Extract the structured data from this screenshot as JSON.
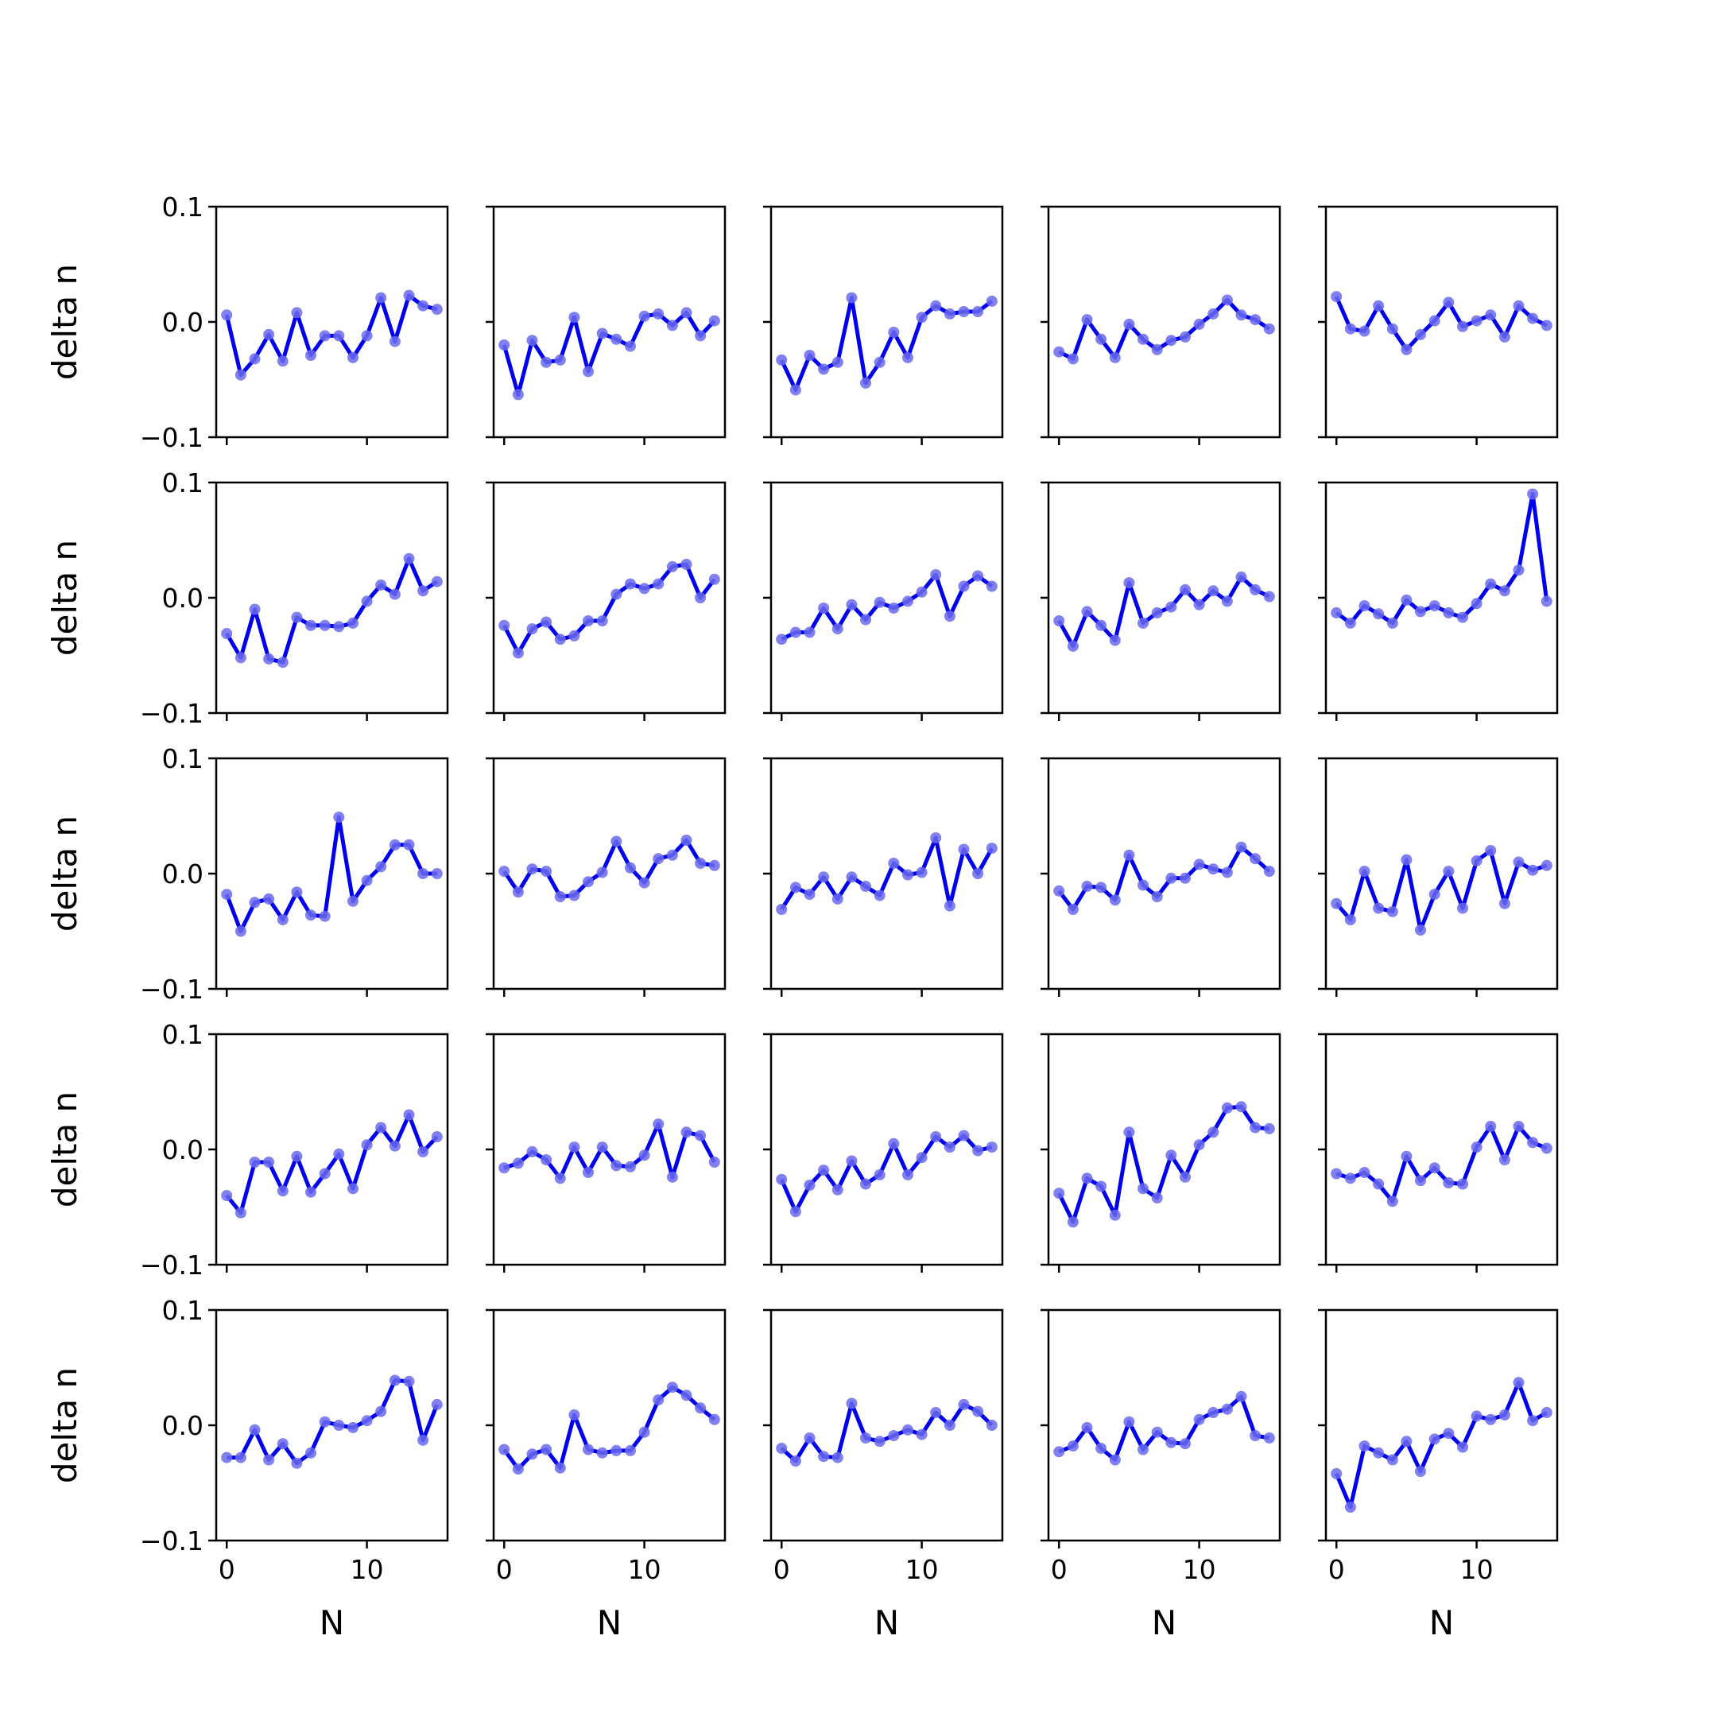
{
  "chart_data": {
    "type": "line",
    "layout": {
      "rows": 5,
      "cols": 5
    },
    "xlabel": "N",
    "ylabel": "delta n",
    "xlim": [
      -0.75,
      15.75
    ],
    "ylim": [
      -0.1,
      0.1
    ],
    "xticks": [
      0,
      10
    ],
    "yticks": [
      -0.1,
      0.0,
      0.1
    ],
    "ytick_labels": [
      "−0.1",
      "0.0",
      "0.1"
    ],
    "xtick_labels": [
      "0",
      "10"
    ],
    "x": [
      0,
      1,
      2,
      3,
      4,
      5,
      6,
      7,
      8,
      9,
      10,
      11,
      12,
      13,
      14,
      15
    ],
    "line_color": "#0000ee",
    "marker_color": "#6a6aee",
    "panels": [
      [
        0.006,
        -0.046,
        -0.032,
        -0.011,
        -0.034,
        0.008,
        -0.029,
        -0.012,
        -0.012,
        -0.031,
        -0.012,
        0.021,
        -0.017,
        0.023,
        0.014,
        0.011
      ],
      [
        -0.02,
        -0.063,
        -0.016,
        -0.035,
        -0.033,
        0.004,
        -0.043,
        -0.01,
        -0.015,
        -0.021,
        0.005,
        0.007,
        -0.003,
        0.008,
        -0.012,
        0.001
      ],
      [
        -0.033,
        -0.059,
        -0.029,
        -0.041,
        -0.035,
        0.021,
        -0.053,
        -0.035,
        -0.009,
        -0.031,
        0.004,
        0.014,
        0.007,
        0.009,
        0.009,
        0.018
      ],
      [
        -0.026,
        -0.032,
        0.002,
        -0.015,
        -0.031,
        -0.002,
        -0.015,
        -0.024,
        -0.016,
        -0.013,
        -0.002,
        0.007,
        0.019,
        0.006,
        0.002,
        -0.006
      ],
      [
        0.022,
        -0.006,
        -0.008,
        0.014,
        -0.006,
        -0.024,
        -0.011,
        0.001,
        0.017,
        -0.004,
        0.001,
        0.006,
        -0.013,
        0.014,
        0.003,
        -0.003
      ],
      [
        -0.031,
        -0.052,
        -0.01,
        -0.053,
        -0.056,
        -0.017,
        -0.024,
        -0.024,
        -0.025,
        -0.022,
        -0.003,
        0.011,
        0.003,
        0.034,
        0.006,
        0.014
      ],
      [
        -0.024,
        -0.048,
        -0.027,
        -0.021,
        -0.036,
        -0.033,
        -0.02,
        -0.02,
        0.003,
        0.012,
        0.008,
        0.012,
        0.027,
        0.029,
        0.0,
        0.016
      ],
      [
        -0.036,
        -0.03,
        -0.03,
        -0.009,
        -0.027,
        -0.006,
        -0.019,
        -0.004,
        -0.009,
        -0.003,
        0.005,
        0.02,
        -0.016,
        0.01,
        0.019,
        0.01
      ],
      [
        -0.02,
        -0.042,
        -0.012,
        -0.024,
        -0.037,
        0.013,
        -0.022,
        -0.013,
        -0.008,
        0.007,
        -0.006,
        0.006,
        -0.003,
        0.018,
        0.007,
        0.001
      ],
      [
        -0.013,
        -0.022,
        -0.007,
        -0.014,
        -0.022,
        -0.002,
        -0.012,
        -0.007,
        -0.013,
        -0.017,
        -0.005,
        0.012,
        0.006,
        0.024,
        0.09,
        -0.003
      ],
      [
        -0.018,
        -0.05,
        -0.025,
        -0.022,
        -0.04,
        -0.016,
        -0.036,
        -0.037,
        0.049,
        -0.024,
        -0.006,
        0.006,
        0.025,
        0.025,
        0.0,
        0.0
      ],
      [
        0.002,
        -0.016,
        0.004,
        0.002,
        -0.02,
        -0.019,
        -0.007,
        0.001,
        0.028,
        0.005,
        -0.008,
        0.013,
        0.016,
        0.029,
        0.009,
        0.007
      ],
      [
        -0.031,
        -0.012,
        -0.018,
        -0.003,
        -0.022,
        -0.003,
        -0.011,
        -0.019,
        0.009,
        -0.001,
        0.001,
        0.031,
        -0.028,
        0.021,
        0.0,
        0.022
      ],
      [
        -0.015,
        -0.031,
        -0.011,
        -0.012,
        -0.023,
        0.016,
        -0.01,
        -0.02,
        -0.004,
        -0.004,
        0.008,
        0.004,
        0.001,
        0.023,
        0.013,
        0.002
      ],
      [
        -0.026,
        -0.04,
        0.002,
        -0.03,
        -0.033,
        0.012,
        -0.049,
        -0.018,
        0.002,
        -0.03,
        0.011,
        0.02,
        -0.026,
        0.01,
        0.003,
        0.007
      ],
      [
        -0.04,
        -0.055,
        -0.011,
        -0.011,
        -0.036,
        -0.006,
        -0.037,
        -0.021,
        -0.004,
        -0.034,
        0.004,
        0.019,
        0.003,
        0.03,
        -0.002,
        0.011
      ],
      [
        -0.016,
        -0.012,
        -0.002,
        -0.009,
        -0.025,
        0.002,
        -0.02,
        0.002,
        -0.014,
        -0.015,
        -0.005,
        0.022,
        -0.024,
        0.015,
        0.012,
        -0.011
      ],
      [
        -0.026,
        -0.054,
        -0.031,
        -0.018,
        -0.035,
        -0.01,
        -0.03,
        -0.022,
        0.005,
        -0.022,
        -0.007,
        0.011,
        0.002,
        0.012,
        -0.001,
        0.002
      ],
      [
        -0.038,
        -0.063,
        -0.025,
        -0.032,
        -0.057,
        0.015,
        -0.034,
        -0.042,
        -0.005,
        -0.024,
        0.004,
        0.015,
        0.036,
        0.037,
        0.019,
        0.018
      ],
      [
        -0.021,
        -0.025,
        -0.02,
        -0.03,
        -0.045,
        -0.006,
        -0.027,
        -0.016,
        -0.029,
        -0.03,
        0.002,
        0.02,
        -0.009,
        0.02,
        0.006,
        0.001
      ],
      [
        -0.028,
        -0.028,
        -0.004,
        -0.03,
        -0.016,
        -0.033,
        -0.024,
        0.003,
        0.0,
        -0.002,
        0.004,
        0.012,
        0.039,
        0.038,
        -0.013,
        0.018
      ],
      [
        -0.021,
        -0.038,
        -0.025,
        -0.021,
        -0.037,
        0.009,
        -0.021,
        -0.024,
        -0.022,
        -0.022,
        -0.006,
        0.022,
        0.033,
        0.026,
        0.015,
        0.005
      ],
      [
        -0.02,
        -0.031,
        -0.011,
        -0.027,
        -0.028,
        0.019,
        -0.011,
        -0.014,
        -0.009,
        -0.004,
        -0.008,
        0.011,
        0.0,
        0.018,
        0.012,
        0.0
      ],
      [
        -0.023,
        -0.018,
        -0.002,
        -0.02,
        -0.03,
        0.003,
        -0.021,
        -0.006,
        -0.015,
        -0.016,
        0.005,
        0.011,
        0.014,
        0.025,
        -0.009,
        -0.011
      ],
      [
        -0.042,
        -0.071,
        -0.018,
        -0.024,
        -0.03,
        -0.014,
        -0.04,
        -0.012,
        -0.007,
        -0.019,
        0.008,
        0.005,
        0.009,
        0.037,
        0.004,
        0.011
      ]
    ]
  }
}
